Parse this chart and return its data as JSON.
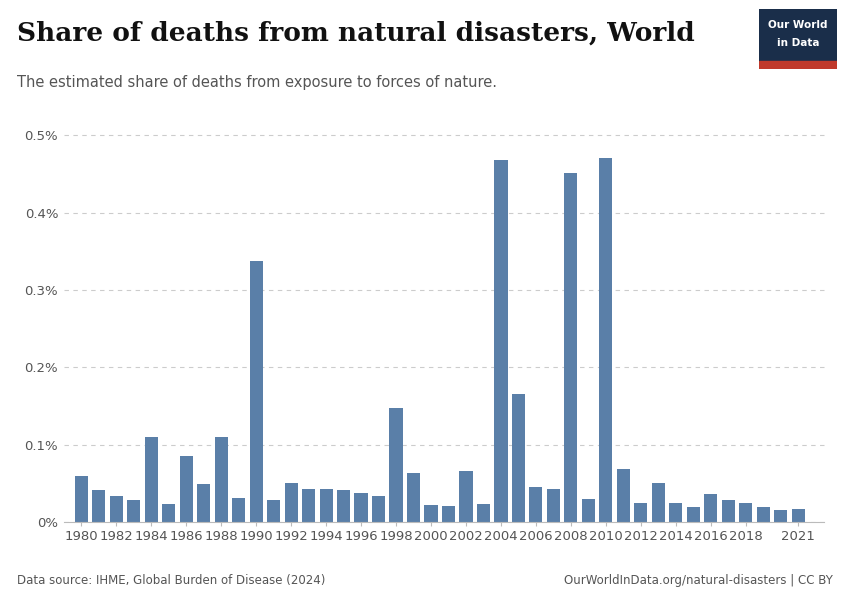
{
  "title": "Share of deaths from natural disasters, World",
  "subtitle": "The estimated share of deaths from exposure to forces of nature.",
  "years": [
    1980,
    1981,
    1982,
    1983,
    1984,
    1985,
    1986,
    1987,
    1988,
    1989,
    1990,
    1991,
    1992,
    1993,
    1994,
    1995,
    1996,
    1997,
    1998,
    1999,
    2000,
    2001,
    2002,
    2003,
    2004,
    2005,
    2006,
    2007,
    2008,
    2009,
    2010,
    2011,
    2012,
    2013,
    2014,
    2015,
    2016,
    2017,
    2018,
    2019,
    2020,
    2021
  ],
  "values": [
    0.06,
    0.042,
    0.034,
    0.029,
    0.11,
    0.023,
    0.086,
    0.049,
    0.11,
    0.031,
    0.338,
    0.028,
    0.05,
    0.043,
    0.043,
    0.041,
    0.038,
    0.033,
    0.147,
    0.064,
    0.022,
    0.021,
    0.066,
    0.023,
    0.468,
    0.165,
    0.045,
    0.043,
    0.452,
    0.03,
    0.471,
    0.068,
    0.024,
    0.051,
    0.025,
    0.02,
    0.036,
    0.029,
    0.024,
    0.02,
    0.016,
    0.017
  ],
  "bar_color": "#5a7fa8",
  "background_color": "#ffffff",
  "ylim": [
    0,
    0.52
  ],
  "yticks": [
    0,
    0.1,
    0.2,
    0.3,
    0.4,
    0.5
  ],
  "ytick_labels": [
    "0%",
    "0.1%",
    "0.2%",
    "0.3%",
    "0.4%",
    "0.5%"
  ],
  "xtick_years": [
    1980,
    1982,
    1984,
    1986,
    1988,
    1990,
    1992,
    1994,
    1996,
    1998,
    2000,
    2002,
    2004,
    2006,
    2008,
    2010,
    2012,
    2014,
    2016,
    2018,
    2021
  ],
  "source_left": "Data source: IHME, Global Burden of Disease (2024)",
  "source_right": "OurWorldInData.org/natural-disasters | CC BY",
  "logo_text_line1": "Our World",
  "logo_text_line2": "in Data",
  "logo_bg": "#1a2e4a",
  "logo_stripe": "#c0392b",
  "title_fontsize": 19,
  "subtitle_fontsize": 10.5,
  "axis_fontsize": 9.5,
  "footer_fontsize": 8.5
}
